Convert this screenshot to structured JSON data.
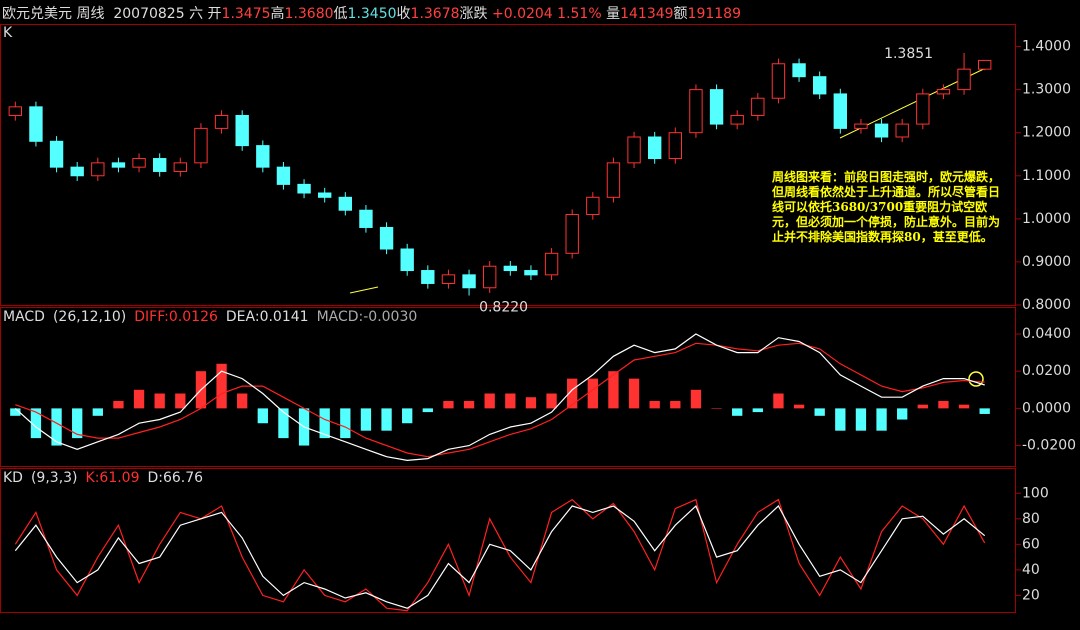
{
  "header": {
    "instrument": "欧元兑美元 周线",
    "date": "20070825 六",
    "open_label": "开",
    "open": "1.3475",
    "high_label": "高",
    "high": "1.3680",
    "low_label": "低",
    "low": "1.3450",
    "close_label": "收",
    "close": "1.3678",
    "change_label": "涨跌",
    "change": "+0.0204",
    "change_pct": "1.51%",
    "volume_label": "量",
    "volume": "141349",
    "amount_label": "额",
    "amount": "191189"
  },
  "chart_data": [
    {
      "type": "candlestick",
      "title": "K",
      "up_color": "#ff3232",
      "down_color": "#54ffff",
      "open": [
        1.24,
        1.26,
        1.18,
        1.12,
        1.1,
        1.13,
        1.12,
        1.14,
        1.11,
        1.13,
        1.21,
        1.24,
        1.17,
        1.12,
        1.08,
        1.06,
        1.05,
        1.02,
        0.98,
        0.93,
        0.88,
        0.85,
        0.87,
        0.84,
        0.89,
        0.88,
        0.87,
        0.92,
        1.01,
        1.05,
        1.13,
        1.19,
        1.14,
        1.2,
        1.3,
        1.22,
        1.24,
        1.28,
        1.36,
        1.33,
        1.29,
        1.21,
        1.22,
        1.19,
        1.22,
        1.29,
        1.3,
        1.3475
      ],
      "high": [
        1.272,
        1.272,
        1.192,
        1.132,
        1.142,
        1.142,
        1.152,
        1.152,
        1.142,
        1.222,
        1.252,
        1.252,
        1.182,
        1.132,
        1.092,
        1.072,
        1.062,
        1.032,
        0.992,
        0.942,
        0.892,
        0.882,
        0.882,
        0.902,
        0.902,
        0.892,
        0.932,
        1.022,
        1.062,
        1.142,
        1.202,
        1.202,
        1.212,
        1.312,
        1.312,
        1.252,
        1.292,
        1.372,
        1.372,
        1.342,
        1.302,
        1.232,
        1.232,
        1.232,
        1.302,
        1.312,
        1.3851,
        1.368
      ],
      "low": [
        1.228,
        1.168,
        1.108,
        1.088,
        1.088,
        1.108,
        1.108,
        1.098,
        1.098,
        1.118,
        1.198,
        1.158,
        1.108,
        1.068,
        1.048,
        1.038,
        1.008,
        0.968,
        0.918,
        0.868,
        0.838,
        0.838,
        0.822,
        0.828,
        0.868,
        0.858,
        0.858,
        0.908,
        0.998,
        1.038,
        1.118,
        1.128,
        1.128,
        1.188,
        1.208,
        1.208,
        1.228,
        1.268,
        1.318,
        1.278,
        1.198,
        1.198,
        1.178,
        1.178,
        1.208,
        1.278,
        1.288,
        1.345
      ],
      "close": [
        1.26,
        1.18,
        1.12,
        1.1,
        1.13,
        1.12,
        1.14,
        1.11,
        1.13,
        1.21,
        1.24,
        1.17,
        1.12,
        1.08,
        1.06,
        1.05,
        1.02,
        0.98,
        0.93,
        0.88,
        0.85,
        0.87,
        0.84,
        0.89,
        0.88,
        0.87,
        0.92,
        1.01,
        1.05,
        1.13,
        1.19,
        1.14,
        1.2,
        1.3,
        1.22,
        1.24,
        1.28,
        1.36,
        1.33,
        1.29,
        1.21,
        1.22,
        1.19,
        1.22,
        1.29,
        1.3,
        1.3475,
        1.3678
      ],
      "ylim": [
        0.8,
        1.45
      ],
      "yticks": [
        {
          "value": 0.8,
          "label": "0.8000"
        },
        {
          "value": 0.9,
          "label": "0.9000"
        },
        {
          "value": 1.0,
          "label": "1.0000"
        },
        {
          "value": 1.1,
          "label": "1.1000"
        },
        {
          "value": 1.2,
          "label": "1.2000"
        },
        {
          "value": 1.3,
          "label": "1.3000"
        },
        {
          "value": 1.4,
          "label": "1.4000"
        }
      ],
      "annotations": [
        {
          "value": 1.3851,
          "label": "1.3851"
        },
        {
          "value": 0.822,
          "label": "0.8220"
        }
      ],
      "note": "周线图来看：前段日图走强时，欧元爆跌，但周线看依然处于上升通道。所以尽管看日线可以依托3680/3700重要阻力试空欧元，但必须加一个停损，防止意外。目前为止并不排除美国指数再探80，甚至更低。"
    },
    {
      "type": "macd",
      "title": "MACD",
      "params": "(26,12,10)",
      "diff_label": "DIFF:0.0126",
      "dea_label": "DEA:0.0141",
      "macd_label": "MACD:-0.0030",
      "series": [
        {
          "name": "DIFF",
          "color": "#ffffff",
          "values": [
            0.0,
            -0.01,
            -0.018,
            -0.022,
            -0.018,
            -0.014,
            -0.008,
            -0.006,
            -0.002,
            0.01,
            0.02,
            0.016,
            0.008,
            -0.002,
            -0.01,
            -0.014,
            -0.018,
            -0.022,
            -0.026,
            -0.028,
            -0.027,
            -0.022,
            -0.02,
            -0.014,
            -0.01,
            -0.008,
            -0.002,
            0.01,
            0.018,
            0.028,
            0.034,
            0.03,
            0.032,
            0.04,
            0.034,
            0.03,
            0.03,
            0.038,
            0.036,
            0.03,
            0.018,
            0.012,
            0.006,
            0.006,
            0.012,
            0.016,
            0.016,
            0.0126
          ]
        },
        {
          "name": "DEA",
          "color": "#ff2020",
          "values": [
            0.002,
            -0.002,
            -0.008,
            -0.014,
            -0.016,
            -0.016,
            -0.013,
            -0.01,
            -0.006,
            0.0,
            0.008,
            0.012,
            0.012,
            0.006,
            0.0,
            -0.006,
            -0.01,
            -0.016,
            -0.02,
            -0.024,
            -0.026,
            -0.024,
            -0.022,
            -0.018,
            -0.014,
            -0.011,
            -0.006,
            0.002,
            0.01,
            0.018,
            0.026,
            0.028,
            0.03,
            0.035,
            0.034,
            0.032,
            0.031,
            0.034,
            0.035,
            0.032,
            0.024,
            0.018,
            0.012,
            0.009,
            0.011,
            0.014,
            0.015,
            0.0141
          ]
        },
        {
          "name": "MACD",
          "color": "#ff3232",
          "neg_color": "#54ffff",
          "values": [
            -0.004,
            -0.016,
            -0.02,
            -0.016,
            -0.004,
            0.004,
            0.01,
            0.008,
            0.008,
            0.02,
            0.024,
            0.008,
            -0.008,
            -0.016,
            -0.02,
            -0.016,
            -0.016,
            -0.012,
            -0.012,
            -0.008,
            -0.002,
            0.004,
            0.004,
            0.008,
            0.008,
            0.006,
            0.008,
            0.016,
            0.016,
            0.02,
            0.016,
            0.004,
            0.004,
            0.01,
            0.0,
            -0.004,
            -0.002,
            0.008,
            0.002,
            -0.004,
            -0.012,
            -0.012,
            -0.012,
            -0.006,
            0.002,
            0.004,
            0.002,
            -0.003
          ]
        }
      ],
      "ylim": [
        -0.031,
        0.054
      ],
      "yticks": [
        {
          "value": -0.02,
          "label": "-0.0200"
        },
        {
          "value": 0,
          "label": "0.0000"
        },
        {
          "value": 0.02,
          "label": "0.0200"
        },
        {
          "value": 0.04,
          "label": "0.0400"
        }
      ]
    },
    {
      "type": "kd",
      "title": "KD",
      "params": "(9,3,3)",
      "k_label": "K:61.09",
      "d_label": "D:66.76",
      "series": [
        {
          "name": "K",
          "color": "#ff2020",
          "values": [
            60,
            85,
            40,
            20,
            50,
            75,
            30,
            60,
            85,
            80,
            90,
            50,
            20,
            15,
            40,
            20,
            15,
            25,
            10,
            8,
            30,
            60,
            20,
            80,
            50,
            30,
            85,
            95,
            80,
            92,
            70,
            40,
            88,
            95,
            30,
            60,
            85,
            95,
            45,
            20,
            50,
            25,
            70,
            90,
            80,
            60,
            90,
            61.09
          ]
        },
        {
          "name": "D",
          "color": "#ffffff",
          "values": [
            55,
            75,
            50,
            30,
            40,
            65,
            45,
            50,
            75,
            80,
            85,
            65,
            35,
            20,
            30,
            25,
            18,
            22,
            15,
            10,
            20,
            45,
            30,
            60,
            55,
            40,
            70,
            90,
            85,
            90,
            78,
            55,
            75,
            90,
            50,
            55,
            75,
            90,
            60,
            35,
            40,
            30,
            55,
            80,
            82,
            68,
            80,
            66.76
          ]
        }
      ],
      "ylim": [
        7,
        119
      ],
      "yticks": [
        20,
        40,
        60,
        80,
        100
      ]
    }
  ]
}
